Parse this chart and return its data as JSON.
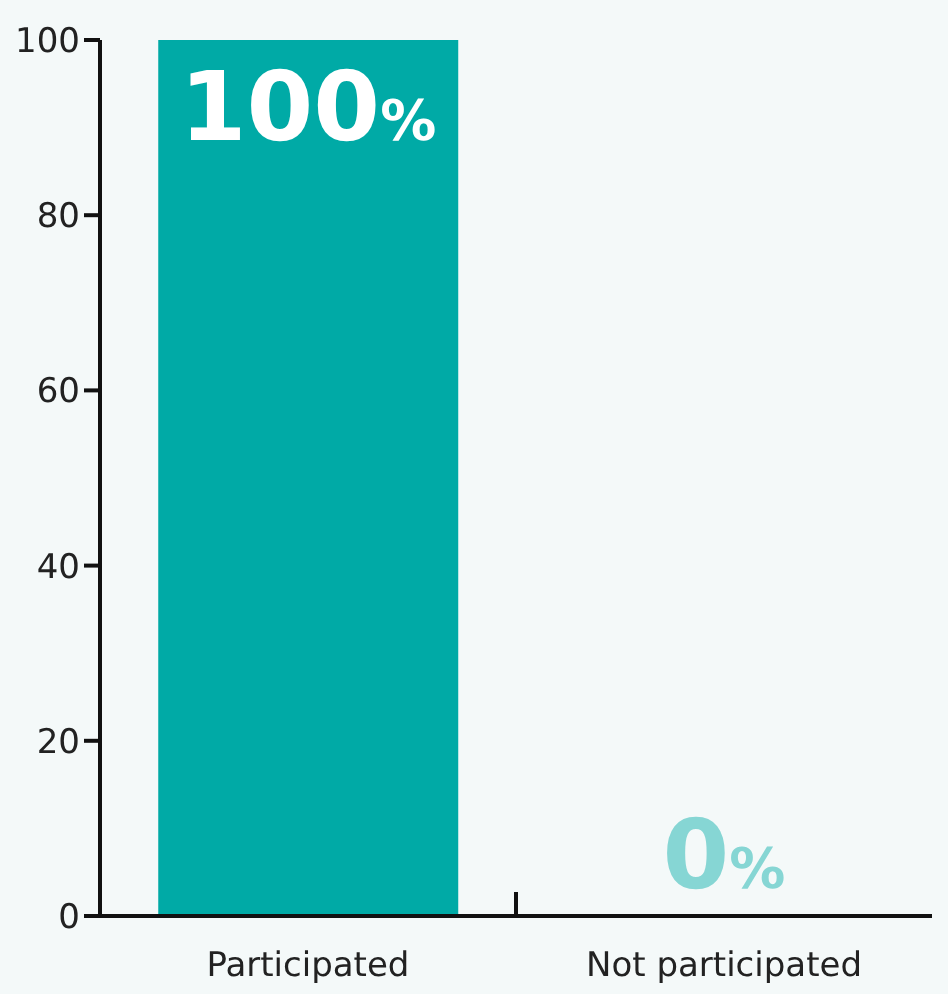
{
  "chart_data": {
    "type": "bar",
    "categories": [
      "Participated",
      "Not participated"
    ],
    "values": [
      100,
      0
    ],
    "colors": [
      "#00aaa6",
      "#00aaa6"
    ],
    "ylim": [
      0,
      100
    ],
    "yticks": [
      0,
      20,
      40,
      60,
      80,
      100
    ],
    "value_labels": [
      "100%",
      "0%"
    ]
  }
}
